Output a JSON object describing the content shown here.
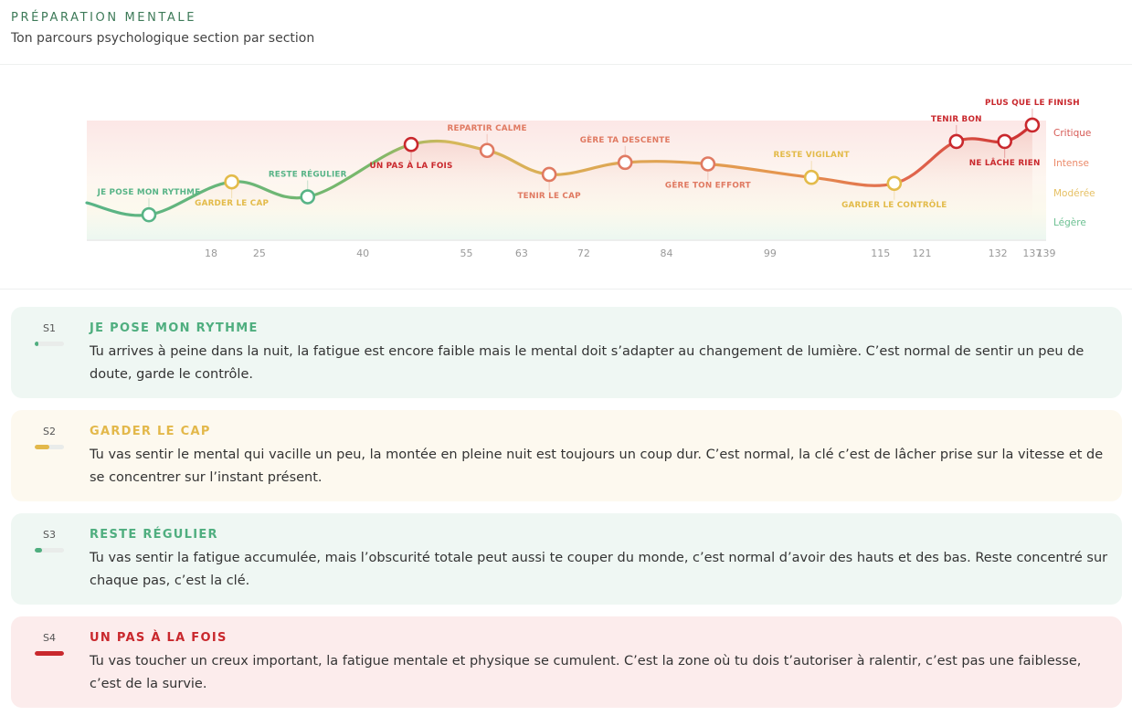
{
  "header": {
    "title": "PRÉPARATION MENTALE",
    "subtitle": "Ton parcours psychologique section par section"
  },
  "levels": [
    {
      "name": "Critique",
      "color": "#d65a55"
    },
    {
      "name": "Intense",
      "color": "#eb8a6a"
    },
    {
      "name": "Modérée",
      "color": "#e6c064"
    },
    {
      "name": "Légère",
      "color": "#6cc092"
    }
  ],
  "chart_data": {
    "type": "line",
    "x_ticks": [
      "18",
      "25",
      "40",
      "55",
      "63",
      "72",
      "84",
      "99",
      "115",
      "121",
      "132",
      "137",
      "139"
    ],
    "xlim": [
      0,
      139
    ],
    "y_levels": [
      "Légère",
      "Modérée",
      "Intense",
      "Critique"
    ],
    "sections": [
      {
        "label": "JE POSE MON RYTHME",
        "x": 9,
        "level": 0.85,
        "color": "#58b487",
        "label_pos": "above"
      },
      {
        "label": "GARDER LE CAP",
        "x": 21,
        "level": 1.95,
        "color": "#e3bb4a",
        "label_pos": "below"
      },
      {
        "label": "RESTE RÉGULIER",
        "x": 32,
        "level": 1.45,
        "color": "#58b487",
        "label_pos": "above"
      },
      {
        "label": "UN PAS À LA FOIS",
        "x": 47,
        "level": 3.2,
        "color": "#c9282d",
        "label_pos": "below"
      },
      {
        "label": "REPARTIR CALME",
        "x": 58,
        "level": 3.0,
        "color": "#e07a62",
        "label_pos": "above"
      },
      {
        "label": "TENIR LE CAP",
        "x": 67,
        "level": 2.2,
        "color": "#e07a62",
        "label_pos": "below"
      },
      {
        "label": "GÈRE TA DESCENTE",
        "x": 78,
        "level": 2.6,
        "color": "#e07a62",
        "label_pos": "above"
      },
      {
        "label": "GÈRE TON EFFORT",
        "x": 90,
        "level": 2.55,
        "color": "#e07a62",
        "label_pos": "below"
      },
      {
        "label": "RESTE VIGILANT",
        "x": 105,
        "level": 2.1,
        "color": "#e3bb4a",
        "label_pos": "above"
      },
      {
        "label": "GARDER LE CONTRÔLE",
        "x": 117,
        "level": 1.9,
        "color": "#e3bb4a",
        "label_pos": "below"
      },
      {
        "label": "TENIR BON",
        "x": 126,
        "level": 3.3,
        "color": "#c9282d",
        "label_pos": "above"
      },
      {
        "label": "NE LÂCHE RIEN",
        "x": 133,
        "level": 3.3,
        "color": "#c9282d",
        "label_pos": "below"
      },
      {
        "label": "PLUS QUE LE FINISH",
        "x": 137,
        "level": 3.85,
        "color": "#c9282d",
        "label_pos": "above"
      }
    ]
  },
  "cards": [
    {
      "sid": "S1",
      "title": "JE POSE MON RYTHME",
      "text": "Tu arrives à peine dans la nuit, la fatigue est encore faible mais le mental doit s’adapter au changement de lumière. C’est normal de sentir un peu de doute, garde le contrôle.",
      "accent": "#4fae7f",
      "bg": "#eff7f3",
      "meter": 0.12
    },
    {
      "sid": "S2",
      "title": "GARDER LE CAP",
      "text": "Tu vas sentir le mental qui vacille un peu, la montée en pleine nuit est toujours un coup dur. C’est normal, la clé c’est de lâcher prise sur la vitesse et de se concentrer sur l’instant présent.",
      "accent": "#e3b84a",
      "bg": "#fdf9ef",
      "meter": 0.5
    },
    {
      "sid": "S3",
      "title": "RESTE RÉGULIER",
      "text": "Tu vas sentir la fatigue accumulée, mais l’obscurité totale peut aussi te couper du monde, c’est normal d’avoir des hauts et des bas. Reste concentré sur chaque pas, c’est la clé.",
      "accent": "#4fae7f",
      "bg": "#eff7f3",
      "meter": 0.25
    },
    {
      "sid": "S4",
      "title": "UN PAS À LA FOIS",
      "text": "Tu vas toucher un creux important, la fatigue mentale et physique se cumulent. C’est la zone où tu dois t’autoriser à ralentir, c’est pas une faiblesse, c’est de la survie.",
      "accent": "#c9282d",
      "bg": "#fcecec",
      "meter": 1.0
    }
  ]
}
